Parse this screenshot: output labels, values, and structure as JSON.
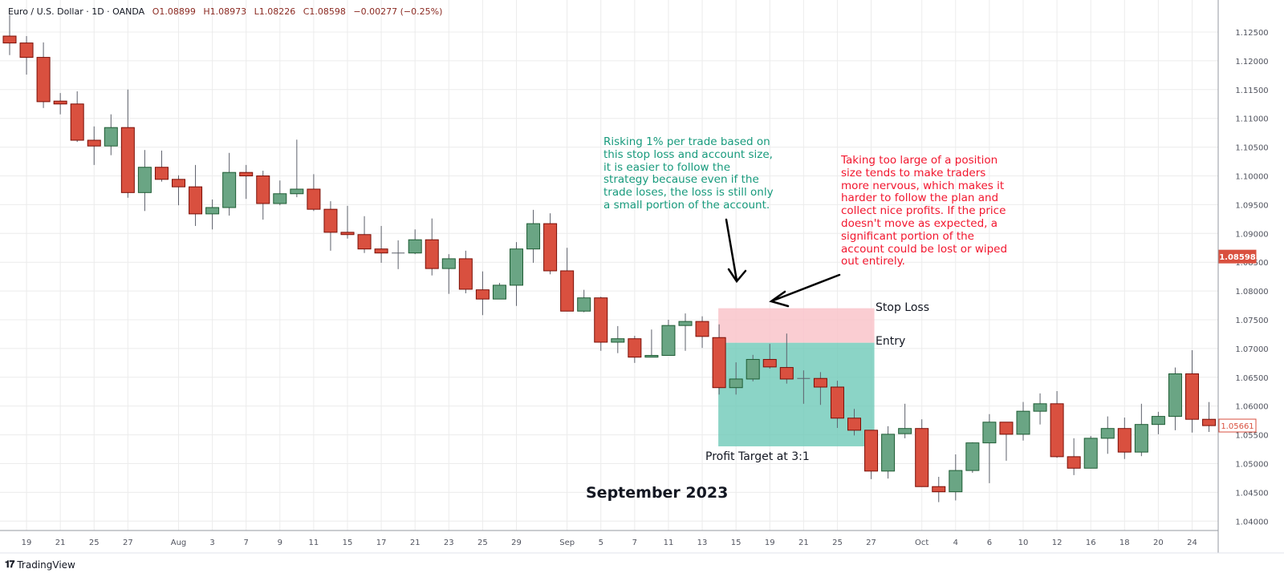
{
  "header": {
    "symbol": "Euro / U.S. Dollar · 1D · OANDA",
    "open": "O1.08899",
    "high": "H1.08973",
    "low": "L1.08226",
    "close": "C1.08598",
    "change": "−0.00277 (−0.25%)"
  },
  "annotations": {
    "green_note": "Risking 1% per trade based on\nthis stop loss and account size,\nit is easier to follow the\nstrategy because even if the\ntrade loses, the loss is still only\na small portion of the account.",
    "red_note": "Taking too large of a position\nsize tends to make traders\nmore nervous, which makes it\nharder to follow the plan and\ncollect nice profits. If the price\ndoesn't move as expected, a\nsignificant portion of the\naccount could be lost or wiped\nout entirely.",
    "stop_loss_label": "Stop Loss",
    "entry_label": "Entry",
    "profit_target_label": "Profit Target at 3:1",
    "month_label": "September 2023"
  },
  "branding": {
    "name": "TradingView",
    "logo_text": "TV"
  },
  "colors": {
    "up": "#6aa584",
    "up_border": "#1e5c34",
    "down": "#d9503f",
    "down_border": "#7a0e06",
    "stop_zone": "#f9c4ca",
    "target_zone": "#6ec9b8",
    "green_text": "#179a7c",
    "red_text": "#f2162e",
    "last_price_bg": "#d9503f"
  },
  "chart_data": {
    "type": "candlestick",
    "title": "",
    "ylim": [
      1.0375,
      1.1285
    ],
    "grid": true,
    "y_ticks": [
      "1.12500",
      "1.12000",
      "1.11500",
      "1.11000",
      "1.10500",
      "1.10000",
      "1.09500",
      "1.09000",
      "1.08500",
      "1.08000",
      "1.07500",
      "1.07000",
      "1.06500",
      "1.06000",
      "1.05500",
      "1.05000",
      "1.04500",
      "1.04000"
    ],
    "x_ticks": [
      {
        "label": "19",
        "date": "2023-07-19"
      },
      {
        "label": "21",
        "date": "2023-07-21"
      },
      {
        "label": "25",
        "date": "2023-07-25"
      },
      {
        "label": "27",
        "date": "2023-07-27"
      },
      {
        "label": "Aug",
        "date": "2023-08-01"
      },
      {
        "label": "3",
        "date": "2023-08-03"
      },
      {
        "label": "7",
        "date": "2023-08-07"
      },
      {
        "label": "9",
        "date": "2023-08-09"
      },
      {
        "label": "11",
        "date": "2023-08-11"
      },
      {
        "label": "15",
        "date": "2023-08-15"
      },
      {
        "label": "17",
        "date": "2023-08-17"
      },
      {
        "label": "21",
        "date": "2023-08-21"
      },
      {
        "label": "23",
        "date": "2023-08-23"
      },
      {
        "label": "25",
        "date": "2023-08-25"
      },
      {
        "label": "29",
        "date": "2023-08-29"
      },
      {
        "label": "Sep",
        "date": "2023-09-01"
      },
      {
        "label": "5",
        "date": "2023-09-05"
      },
      {
        "label": "7",
        "date": "2023-09-07"
      },
      {
        "label": "11",
        "date": "2023-09-11"
      },
      {
        "label": "13",
        "date": "2023-09-13"
      },
      {
        "label": "15",
        "date": "2023-09-15"
      },
      {
        "label": "19",
        "date": "2023-09-19"
      },
      {
        "label": "21",
        "date": "2023-09-21"
      },
      {
        "label": "25",
        "date": "2023-09-25"
      },
      {
        "label": "27",
        "date": "2023-09-27"
      },
      {
        "label": "Oct",
        "date": "2023-10-02"
      },
      {
        "label": "4",
        "date": "2023-10-04"
      },
      {
        "label": "6",
        "date": "2023-10-06"
      },
      {
        "label": "10",
        "date": "2023-10-10"
      },
      {
        "label": "12",
        "date": "2023-10-12"
      },
      {
        "label": "16",
        "date": "2023-10-16"
      },
      {
        "label": "18",
        "date": "2023-10-18"
      },
      {
        "label": "20",
        "date": "2023-10-20"
      },
      {
        "label": "24",
        "date": "2023-10-24"
      }
    ],
    "price_labels": [
      {
        "value": 1.08598,
        "text": "1.08598",
        "style": "filled"
      },
      {
        "value": 1.05661,
        "text": "1.05661",
        "style": "outline"
      }
    ],
    "position": {
      "start": "2023-09-14",
      "end": "2023-09-27",
      "stop": 1.077,
      "entry": 1.071,
      "target": 1.053
    },
    "candles": [
      {
        "date": "2023-07-18",
        "o": 1.1243,
        "h": 1.128,
        "l": 1.121,
        "c": 1.1231
      },
      {
        "date": "2023-07-19",
        "o": 1.1231,
        "h": 1.1243,
        "l": 1.1176,
        "c": 1.1206
      },
      {
        "date": "2023-07-20",
        "o": 1.1206,
        "h": 1.1232,
        "l": 1.1118,
        "c": 1.1129
      },
      {
        "date": "2023-07-21",
        "o": 1.113,
        "h": 1.1144,
        "l": 1.1107,
        "c": 1.1125
      },
      {
        "date": "2023-07-24",
        "o": 1.1125,
        "h": 1.1147,
        "l": 1.1059,
        "c": 1.1062
      },
      {
        "date": "2023-07-25",
        "o": 1.1062,
        "h": 1.1086,
        "l": 1.1019,
        "c": 1.1052
      },
      {
        "date": "2023-07-26",
        "o": 1.1052,
        "h": 1.1107,
        "l": 1.1036,
        "c": 1.1084
      },
      {
        "date": "2023-07-27",
        "o": 1.1084,
        "h": 1.115,
        "l": 1.0962,
        "c": 1.0971
      },
      {
        "date": "2023-07-28",
        "o": 1.0971,
        "h": 1.1045,
        "l": 1.0939,
        "c": 1.1015
      },
      {
        "date": "2023-07-31",
        "o": 1.1015,
        "h": 1.1044,
        "l": 1.099,
        "c": 1.0994
      },
      {
        "date": "2023-08-01",
        "o": 1.0994,
        "h": 1.1001,
        "l": 1.0949,
        "c": 1.0981
      },
      {
        "date": "2023-08-02",
        "o": 1.0981,
        "h": 1.1019,
        "l": 1.0913,
        "c": 1.0934
      },
      {
        "date": "2023-08-03",
        "o": 1.0934,
        "h": 1.0959,
        "l": 1.0907,
        "c": 1.0945
      },
      {
        "date": "2023-08-04",
        "o": 1.0945,
        "h": 1.104,
        "l": 1.0931,
        "c": 1.1006
      },
      {
        "date": "2023-08-07",
        "o": 1.1006,
        "h": 1.1019,
        "l": 1.096,
        "c": 1.1
      },
      {
        "date": "2023-08-08",
        "o": 1.1,
        "h": 1.1009,
        "l": 1.0924,
        "c": 1.0952
      },
      {
        "date": "2023-08-09",
        "o": 1.0952,
        "h": 1.0992,
        "l": 1.0949,
        "c": 1.0969
      },
      {
        "date": "2023-08-10",
        "o": 1.0969,
        "h": 1.1063,
        "l": 1.0963,
        "c": 1.0977
      },
      {
        "date": "2023-08-11",
        "o": 1.0977,
        "h": 1.1003,
        "l": 1.0939,
        "c": 1.0942
      },
      {
        "date": "2023-08-14",
        "o": 1.0942,
        "h": 1.0956,
        "l": 1.087,
        "c": 1.0902
      },
      {
        "date": "2023-08-15",
        "o": 1.0902,
        "h": 1.0948,
        "l": 1.0891,
        "c": 1.0898
      },
      {
        "date": "2023-08-16",
        "o": 1.0898,
        "h": 1.093,
        "l": 1.0866,
        "c": 1.0873
      },
      {
        "date": "2023-08-17",
        "o": 1.0873,
        "h": 1.0913,
        "l": 1.0849,
        "c": 1.0866
      },
      {
        "date": "2023-08-18",
        "o": 1.0866,
        "h": 1.0888,
        "l": 1.0838,
        "c": 1.0866
      },
      {
        "date": "2023-08-21",
        "o": 1.0866,
        "h": 1.0907,
        "l": 1.0864,
        "c": 1.0889
      },
      {
        "date": "2023-08-22",
        "o": 1.0889,
        "h": 1.0926,
        "l": 1.0827,
        "c": 1.0839
      },
      {
        "date": "2023-08-23",
        "o": 1.0839,
        "h": 1.0864,
        "l": 1.0795,
        "c": 1.0856
      },
      {
        "date": "2023-08-24",
        "o": 1.0856,
        "h": 1.087,
        "l": 1.0796,
        "c": 1.0803
      },
      {
        "date": "2023-08-25",
        "o": 1.0802,
        "h": 1.0834,
        "l": 1.0758,
        "c": 1.0786
      },
      {
        "date": "2023-08-28",
        "o": 1.0786,
        "h": 1.0814,
        "l": 1.0786,
        "c": 1.081
      },
      {
        "date": "2023-08-29",
        "o": 1.081,
        "h": 1.0885,
        "l": 1.0774,
        "c": 1.0873
      },
      {
        "date": "2023-08-30",
        "o": 1.0873,
        "h": 1.0941,
        "l": 1.0849,
        "c": 1.0917
      },
      {
        "date": "2023-08-31",
        "o": 1.0917,
        "h": 1.0935,
        "l": 1.0829,
        "c": 1.0835
      },
      {
        "date": "2023-09-01",
        "o": 1.0835,
        "h": 1.0875,
        "l": 1.0765,
        "c": 1.0765
      },
      {
        "date": "2023-09-04",
        "o": 1.0765,
        "h": 1.0802,
        "l": 1.0763,
        "c": 1.0788
      },
      {
        "date": "2023-09-05",
        "o": 1.0788,
        "h": 1.079,
        "l": 1.0696,
        "c": 1.0711
      },
      {
        "date": "2023-09-06",
        "o": 1.0711,
        "h": 1.0739,
        "l": 1.0692,
        "c": 1.0717
      },
      {
        "date": "2023-09-07",
        "o": 1.0717,
        "h": 1.0722,
        "l": 1.0675,
        "c": 1.0685
      },
      {
        "date": "2023-09-08",
        "o": 1.0685,
        "h": 1.0733,
        "l": 1.0685,
        "c": 1.0688
      },
      {
        "date": "2023-09-11",
        "o": 1.0688,
        "h": 1.075,
        "l": 1.0688,
        "c": 1.074
      },
      {
        "date": "2023-09-12",
        "o": 1.074,
        "h": 1.0761,
        "l": 1.0696,
        "c": 1.0747
      },
      {
        "date": "2023-09-13",
        "o": 1.0747,
        "h": 1.0756,
        "l": 1.0701,
        "c": 1.0721
      },
      {
        "date": "2023-09-14",
        "o": 1.0719,
        "h": 1.0742,
        "l": 1.062,
        "c": 1.0632
      },
      {
        "date": "2023-09-15",
        "o": 1.0632,
        "h": 1.0676,
        "l": 1.062,
        "c": 1.0647
      },
      {
        "date": "2023-09-18",
        "o": 1.0647,
        "h": 1.0689,
        "l": 1.0643,
        "c": 1.0681
      },
      {
        "date": "2023-09-19",
        "o": 1.0681,
        "h": 1.0708,
        "l": 1.0665,
        "c": 1.0668
      },
      {
        "date": "2023-09-20",
        "o": 1.0667,
        "h": 1.0726,
        "l": 1.0639,
        "c": 1.0647
      },
      {
        "date": "2023-09-21",
        "o": 1.0648,
        "h": 1.0662,
        "l": 1.0604,
        "c": 1.0648
      },
      {
        "date": "2023-09-22",
        "o": 1.0648,
        "h": 1.0659,
        "l": 1.0602,
        "c": 1.0633
      },
      {
        "date": "2023-09-25",
        "o": 1.0633,
        "h": 1.0644,
        "l": 1.0562,
        "c": 1.0579
      },
      {
        "date": "2023-09-26",
        "o": 1.0579,
        "h": 1.0595,
        "l": 1.0549,
        "c": 1.0558
      },
      {
        "date": "2023-09-27",
        "o": 1.0558,
        "h": 1.0558,
        "l": 1.0473,
        "c": 1.0487
      },
      {
        "date": "2023-09-28",
        "o": 1.0487,
        "h": 1.0565,
        "l": 1.0474,
        "c": 1.0551
      },
      {
        "date": "2023-09-29",
        "o": 1.0552,
        "h": 1.0604,
        "l": 1.0544,
        "c": 1.0561
      },
      {
        "date": "2023-10-02",
        "o": 1.0561,
        "h": 1.0577,
        "l": 1.046,
        "c": 1.046
      },
      {
        "date": "2023-10-03",
        "o": 1.046,
        "h": 1.0477,
        "l": 1.0433,
        "c": 1.0451
      },
      {
        "date": "2023-10-04",
        "o": 1.0451,
        "h": 1.0516,
        "l": 1.0436,
        "c": 1.0488
      },
      {
        "date": "2023-10-05",
        "o": 1.0488,
        "h": 1.0537,
        "l": 1.0484,
        "c": 1.0536
      },
      {
        "date": "2023-10-06",
        "o": 1.0536,
        "h": 1.0586,
        "l": 1.0466,
        "c": 1.0572
      },
      {
        "date": "2023-10-09",
        "o": 1.0572,
        "h": 1.0572,
        "l": 1.0505,
        "c": 1.0551
      },
      {
        "date": "2023-10-10",
        "o": 1.0551,
        "h": 1.0607,
        "l": 1.054,
        "c": 1.0591
      },
      {
        "date": "2023-10-11",
        "o": 1.0591,
        "h": 1.0622,
        "l": 1.0568,
        "c": 1.0604
      },
      {
        "date": "2023-10-12",
        "o": 1.0604,
        "h": 1.0626,
        "l": 1.051,
        "c": 1.0512
      },
      {
        "date": "2023-10-13",
        "o": 1.0512,
        "h": 1.0544,
        "l": 1.048,
        "c": 1.0492
      },
      {
        "date": "2023-10-16",
        "o": 1.0492,
        "h": 1.0548,
        "l": 1.0492,
        "c": 1.0544
      },
      {
        "date": "2023-10-17",
        "o": 1.0544,
        "h": 1.0582,
        "l": 1.0517,
        "c": 1.0561
      },
      {
        "date": "2023-10-18",
        "o": 1.0561,
        "h": 1.058,
        "l": 1.0508,
        "c": 1.052
      },
      {
        "date": "2023-10-19",
        "o": 1.052,
        "h": 1.0604,
        "l": 1.0513,
        "c": 1.0568
      },
      {
        "date": "2023-10-20",
        "o": 1.0568,
        "h": 1.059,
        "l": 1.0551,
        "c": 1.0582
      },
      {
        "date": "2023-10-23",
        "o": 1.0582,
        "h": 1.0667,
        "l": 1.0558,
        "c": 1.0656
      },
      {
        "date": "2023-10-24",
        "o": 1.0656,
        "h": 1.0697,
        "l": 1.0554,
        "c": 1.0577
      },
      {
        "date": "2023-10-25",
        "o": 1.0577,
        "h": 1.0607,
        "l": 1.0555,
        "c": 1.0566
      }
    ]
  }
}
